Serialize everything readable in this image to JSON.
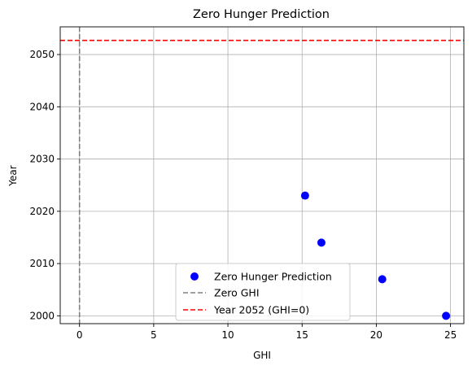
{
  "chart_data": {
    "type": "scatter",
    "title": "Zero Hunger Prediction",
    "xlabel": "GHI",
    "ylabel": "Year",
    "xlim": [
      -1.3,
      25.9
    ],
    "ylim": [
      1998.5,
      2055.3
    ],
    "x_ticks": [
      0,
      5,
      10,
      15,
      20,
      25
    ],
    "y_ticks": [
      2000,
      2010,
      2020,
      2030,
      2040,
      2050
    ],
    "grid": true,
    "legend_position": "lower-center",
    "series": [
      {
        "name": "Zero Hunger Prediction",
        "kind": "scatter",
        "color": "#0000ff",
        "points": [
          {
            "x": 24.7,
            "y": 2000
          },
          {
            "x": 20.4,
            "y": 2007
          },
          {
            "x": 16.3,
            "y": 2014
          },
          {
            "x": 15.2,
            "y": 2023
          }
        ]
      }
    ],
    "reference_lines": [
      {
        "name": "Zero GHI",
        "orientation": "vertical",
        "value": 0,
        "color": "#808080",
        "style": "dashed"
      },
      {
        "name": "Year 2052 (GHI=0)",
        "orientation": "horizontal",
        "value": 2052.7,
        "color": "#ff0000",
        "style": "dashed"
      }
    ]
  }
}
